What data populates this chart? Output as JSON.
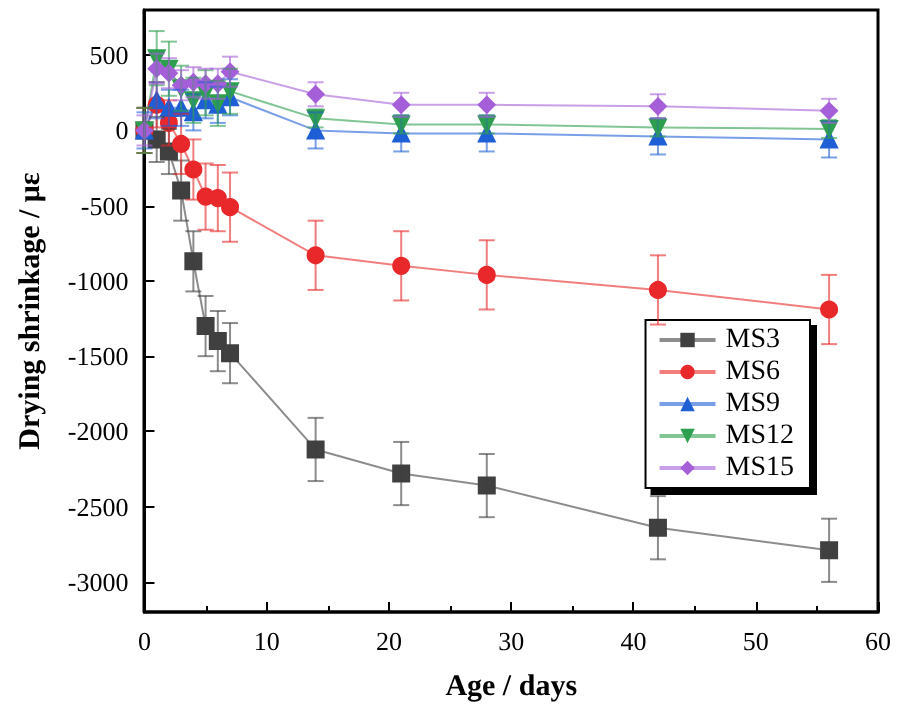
{
  "chart_data": {
    "type": "line",
    "xlabel": "Age / days",
    "ylabel": "Drying shrinkage / με",
    "x": [
      0,
      1,
      2,
      3,
      4,
      5,
      6,
      7,
      14,
      21,
      28,
      42,
      56
    ],
    "xlim": [
      0,
      60
    ],
    "xticks": [
      0,
      10,
      20,
      30,
      40,
      50,
      60
    ],
    "ylim": [
      -3200,
      800
    ],
    "yticks": [
      -3000,
      -2500,
      -2000,
      -1500,
      -1000,
      -500,
      0,
      500
    ],
    "grid": false,
    "legend": "right",
    "line_style": "solid",
    "series": [
      {
        "name": "MS3",
        "color": "#404040",
        "marker": "square",
        "values": [
          0,
          -60,
          -140,
          -400,
          -870,
          -1300,
          -1400,
          -1480,
          -2120,
          -2280,
          -2360,
          -2640,
          -2790
        ],
        "errors": [
          150,
          150,
          150,
          200,
          200,
          200,
          200,
          200,
          210,
          210,
          210,
          210,
          210
        ]
      },
      {
        "name": "MS6",
        "color": "#e8282a",
        "marker": "circle",
        "values": [
          0,
          170,
          50,
          -90,
          -260,
          -440,
          -450,
          -510,
          -830,
          -900,
          -960,
          -1060,
          -1190
        ],
        "errors": [
          150,
          150,
          150,
          200,
          200,
          220,
          220,
          230,
          230,
          230,
          230,
          230,
          230
        ]
      },
      {
        "name": "MS9",
        "color": "#1f5fd6",
        "marker": "triangle",
        "values": [
          0,
          200,
          150,
          150,
          120,
          200,
          170,
          220,
          0,
          -20,
          -20,
          -40,
          -60
        ],
        "errors": [
          120,
          120,
          120,
          120,
          120,
          120,
          120,
          120,
          120,
          120,
          120,
          120,
          120
        ]
      },
      {
        "name": "MS12",
        "color": "#2e9e4f",
        "marker": "triangle-down",
        "values": [
          0,
          480,
          410,
          280,
          200,
          250,
          180,
          260,
          80,
          40,
          40,
          20,
          10
        ],
        "errors": [
          150,
          180,
          180,
          150,
          150,
          150,
          150,
          150,
          60,
          60,
          60,
          60,
          60
        ]
      },
      {
        "name": "MS15",
        "color": "#a55fd8",
        "marker": "diamond",
        "values": [
          0,
          410,
          380,
          300,
          320,
          310,
          310,
          390,
          240,
          170,
          170,
          160,
          130
        ],
        "errors": [
          100,
          100,
          100,
          100,
          100,
          100,
          100,
          100,
          80,
          80,
          80,
          80,
          80
        ]
      }
    ]
  }
}
